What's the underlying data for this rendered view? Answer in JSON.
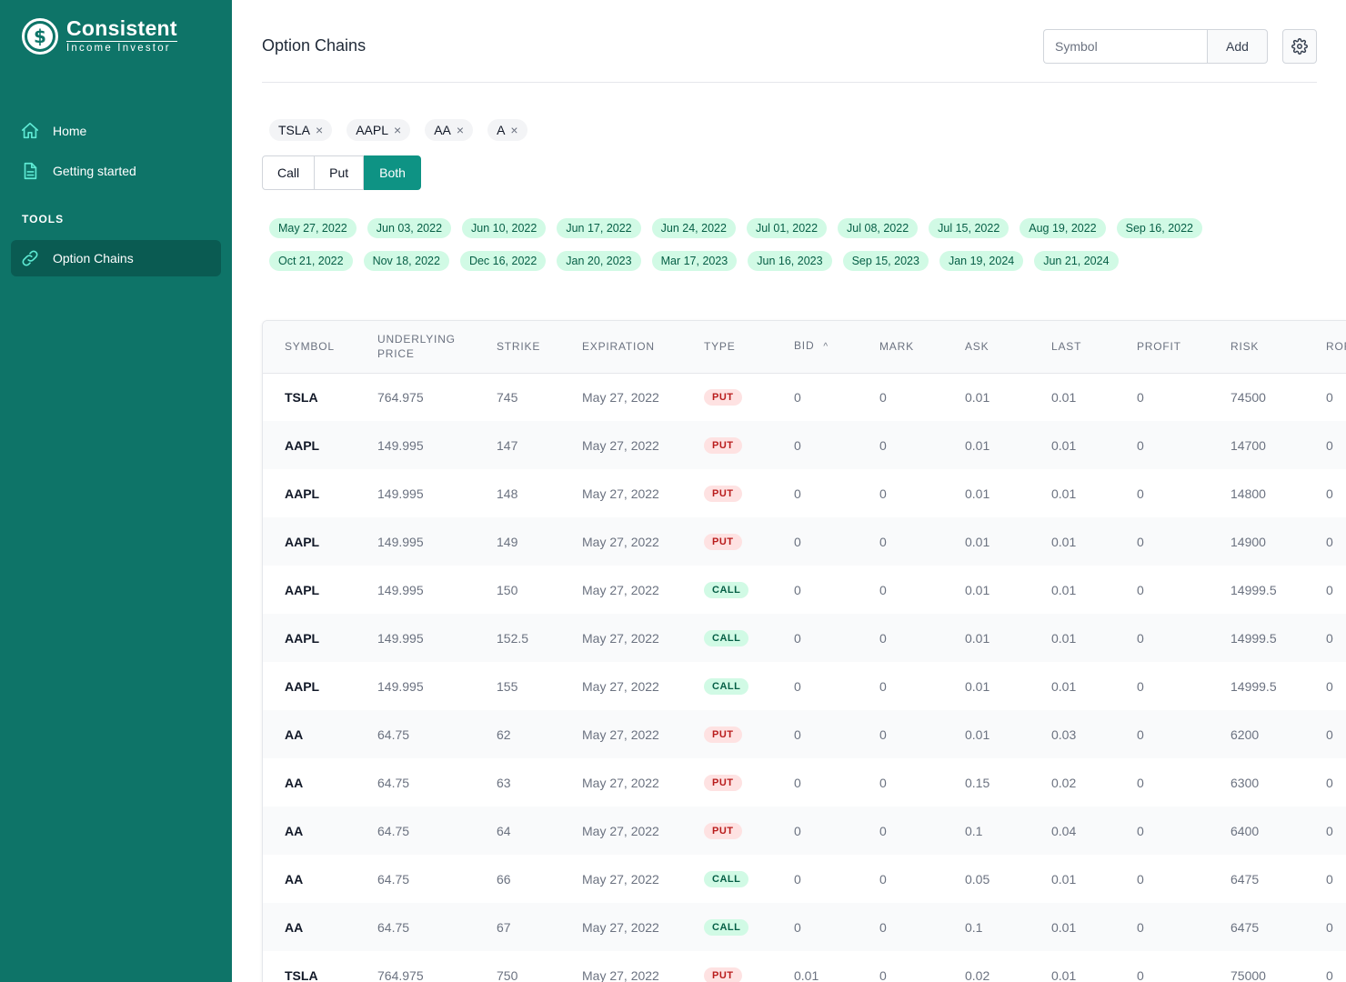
{
  "colors": {
    "sidebar": "#0e7468",
    "accent": "#0e9384",
    "put_badge": "#fee2e2",
    "call_badge": "#d1fae5"
  },
  "brand": {
    "symbol": "$",
    "title": "Consistent",
    "subtitle": "Income Investor"
  },
  "sidebar": {
    "items": [
      {
        "label": "Home",
        "icon": "home-icon"
      },
      {
        "label": "Getting started",
        "icon": "document-icon"
      }
    ],
    "section_label": "TOOLS",
    "tools": [
      {
        "label": "Option Chains",
        "icon": "link-icon",
        "active": true
      }
    ]
  },
  "header": {
    "title": "Option Chains",
    "symbol_placeholder": "Symbol",
    "add_label": "Add",
    "settings_icon": "gear-icon"
  },
  "symbols": [
    "TSLA",
    "AAPL",
    "AA",
    "A"
  ],
  "remove_glyph": "×",
  "type_filter": {
    "options": [
      "Call",
      "Put",
      "Both"
    ],
    "selected": "Both"
  },
  "expirations": [
    "May 27, 2022",
    "Jun 03, 2022",
    "Jun 10, 2022",
    "Jun 17, 2022",
    "Jun 24, 2022",
    "Jul 01, 2022",
    "Jul 08, 2022",
    "Jul 15, 2022",
    "Aug 19, 2022",
    "Sep 16, 2022",
    "Oct 21, 2022",
    "Nov 18, 2022",
    "Dec 16, 2022",
    "Jan 20, 2023",
    "Mar 17, 2023",
    "Jun 16, 2023",
    "Sep 15, 2023",
    "Jan 19, 2024",
    "Jun 21, 2024"
  ],
  "table": {
    "columns": [
      "SYMBOL",
      "UNDERLYING PRICE",
      "STRIKE",
      "EXPIRATION",
      "TYPE",
      "BID",
      "MARK",
      "ASK",
      "LAST",
      "PROFIT",
      "RISK",
      "ROR"
    ],
    "sorted_column": "BID",
    "sort_glyph": "^",
    "rows": [
      [
        "TSLA",
        "764.975",
        "745",
        "May 27, 2022",
        "PUT",
        "0",
        "0",
        "0.01",
        "0.01",
        "0",
        "74500",
        "0"
      ],
      [
        "AAPL",
        "149.995",
        "147",
        "May 27, 2022",
        "PUT",
        "0",
        "0",
        "0.01",
        "0.01",
        "0",
        "14700",
        "0"
      ],
      [
        "AAPL",
        "149.995",
        "148",
        "May 27, 2022",
        "PUT",
        "0",
        "0",
        "0.01",
        "0.01",
        "0",
        "14800",
        "0"
      ],
      [
        "AAPL",
        "149.995",
        "149",
        "May 27, 2022",
        "PUT",
        "0",
        "0",
        "0.01",
        "0.01",
        "0",
        "14900",
        "0"
      ],
      [
        "AAPL",
        "149.995",
        "150",
        "May 27, 2022",
        "CALL",
        "0",
        "0",
        "0.01",
        "0.01",
        "0",
        "14999.5",
        "0"
      ],
      [
        "AAPL",
        "149.995",
        "152.5",
        "May 27, 2022",
        "CALL",
        "0",
        "0",
        "0.01",
        "0.01",
        "0",
        "14999.5",
        "0"
      ],
      [
        "AAPL",
        "149.995",
        "155",
        "May 27, 2022",
        "CALL",
        "0",
        "0",
        "0.01",
        "0.01",
        "0",
        "14999.5",
        "0"
      ],
      [
        "AA",
        "64.75",
        "62",
        "May 27, 2022",
        "PUT",
        "0",
        "0",
        "0.01",
        "0.03",
        "0",
        "6200",
        "0"
      ],
      [
        "AA",
        "64.75",
        "63",
        "May 27, 2022",
        "PUT",
        "0",
        "0",
        "0.15",
        "0.02",
        "0",
        "6300",
        "0"
      ],
      [
        "AA",
        "64.75",
        "64",
        "May 27, 2022",
        "PUT",
        "0",
        "0",
        "0.1",
        "0.04",
        "0",
        "6400",
        "0"
      ],
      [
        "AA",
        "64.75",
        "66",
        "May 27, 2022",
        "CALL",
        "0",
        "0",
        "0.05",
        "0.01",
        "0",
        "6475",
        "0"
      ],
      [
        "AA",
        "64.75",
        "67",
        "May 27, 2022",
        "CALL",
        "0",
        "0",
        "0.1",
        "0.01",
        "0",
        "6475",
        "0"
      ],
      [
        "TSLA",
        "764.975",
        "750",
        "May 27, 2022",
        "PUT",
        "0.01",
        "0",
        "0.02",
        "0.01",
        "0",
        "75000",
        "0"
      ]
    ]
  }
}
